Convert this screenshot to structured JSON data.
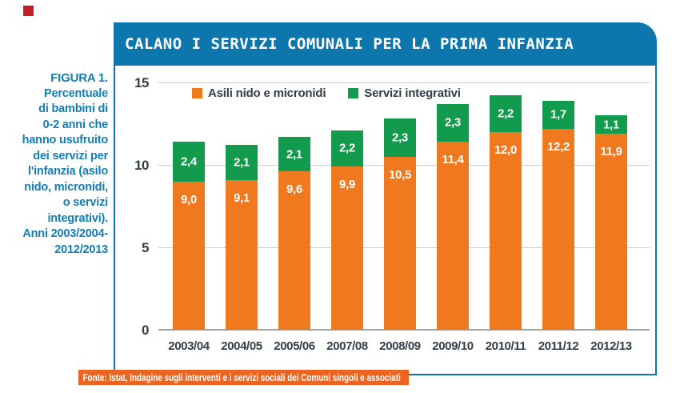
{
  "page": {
    "bullet_color": "#c22026"
  },
  "header": {
    "title": "CALANO I SERVIZI COMUNALI PER LA PRIMA INFANZIA",
    "bg_color": "#0d76ad"
  },
  "sidebar_caption": {
    "title": "FIGURA 1.",
    "lines": [
      "Percentuale",
      "di bambini di",
      "0-2 anni che",
      "hanno usufruito",
      "dei servizi per",
      "l'infanzia (asilo",
      "nido, micronidi,",
      "o servizi",
      "integrativi).",
      "Anni 2003/2004-",
      "2012/2013"
    ],
    "text_color": "#117db4"
  },
  "chart_data": {
    "type": "bar",
    "stacked": true,
    "grid": true,
    "legend_position": "top-center",
    "ylim": [
      0,
      15
    ],
    "y_ticks": [
      {
        "label": "15",
        "value": 15
      },
      {
        "label": "10",
        "value": 10
      },
      {
        "label": "5",
        "value": 5
      },
      {
        "label": "0",
        "value": 0
      }
    ],
    "categories": [
      "2003/04",
      "2004/05",
      "2005/06",
      "2007/08",
      "2008/09",
      "2009/10",
      "2010/11",
      "2011/12",
      "2012/13"
    ],
    "series": [
      {
        "name": "Asili nido e micronidi",
        "color": "#f0781e",
        "values": [
          9.0,
          9.1,
          9.6,
          9.9,
          10.5,
          11.4,
          12.0,
          12.2,
          11.9
        ],
        "labels": [
          "9,0",
          "9,1",
          "9,6",
          "9,9",
          "10,5",
          "11,4",
          "12,0",
          "12,2",
          "11,9"
        ]
      },
      {
        "name": "Servizi integrativi",
        "color": "#129a4d",
        "values": [
          2.4,
          2.1,
          2.1,
          2.2,
          2.3,
          2.3,
          2.2,
          1.7,
          1.1
        ],
        "labels": [
          "2,4",
          "2,1",
          "2,1",
          "2,2",
          "2,3",
          "2,3",
          "2,2",
          "1,7",
          "1,1"
        ]
      }
    ]
  },
  "footer": {
    "source": "Fonte: Istat, Indagine sugli interventi e i servizi sociali dei Comuni singoli e associati",
    "bg_color": "#ec641f"
  }
}
